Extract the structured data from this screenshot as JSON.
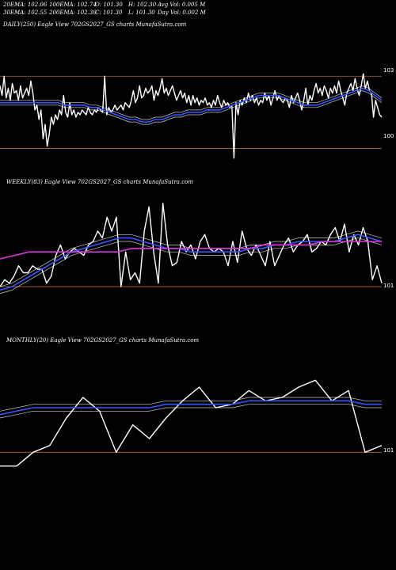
{
  "header": {
    "ema20": "20EMA: 102.06",
    "ema100": "100EMA: 102.74",
    "open": "O: 101.30",
    "high": "H: 102.30",
    "avg_vol": "Avg Vol: 0.005 M",
    "ema30": "30EMA: 102.55",
    "ema200": "200EMA: 102.39",
    "close": "C: 101.30",
    "low": "L: 101.30",
    "day_vol": "Day Vol: 0.002 M"
  },
  "panels": {
    "daily": {
      "title": "DAILY(250) Eagle  View  702GS2027_GS charts MunafaSutra.com"
    },
    "weekly": {
      "title": "WEEKLY(83) Eagle  View  702GS2027_GS charts MunafaSutra.com"
    },
    "monthly": {
      "title": "MONTHLY(20) Eagle  View  702GS2027_GS charts MunafaSutra.com"
    }
  },
  "colors": {
    "background": "#000000",
    "price": "#ffffff",
    "ema_short": "#3355ff",
    "ema_long": "#dd33dd",
    "ema_mid": "#cccccc",
    "level_line": "#b86a2a"
  },
  "chart_data": [
    {
      "type": "line",
      "panel": "daily",
      "levels": [
        {
          "value": 103,
          "label": "103"
        },
        {
          "value": 100,
          "label": "100"
        }
      ],
      "series": [
        {
          "role": "price",
          "values": [
            102.6,
            102.2,
            103.0,
            102.1,
            102.5,
            102.0,
            102.7,
            102.3,
            102.4,
            102.0,
            102.6,
            102.1,
            102.3,
            102.5,
            102.2,
            102.8,
            102.3,
            101.6,
            101.8,
            101.2,
            101.6,
            100.4,
            101.0,
            100.1,
            100.6,
            101.3,
            101.0,
            101.4,
            101.2,
            101.6,
            101.4,
            102.2,
            101.5,
            101.3,
            101.9,
            101.4,
            101.6,
            101.3,
            101.5,
            101.4,
            101.6,
            101.5,
            101.4,
            101.7,
            101.5,
            101.4,
            101.6,
            101.5,
            101.7,
            101.6,
            101.5,
            103.0,
            101.4,
            101.7,
            101.5,
            101.6,
            101.8,
            101.6,
            101.7,
            101.8,
            101.6,
            101.9,
            101.8,
            101.7,
            102.0,
            102.4,
            101.9,
            102.1,
            102.6,
            102.1,
            102.2,
            102.5,
            102.3,
            102.4,
            102.6,
            102.0,
            102.4,
            102.2,
            102.5,
            102.9,
            102.3,
            102.5,
            102.2,
            102.4,
            102.6,
            102.3,
            102.0,
            102.2,
            102.4,
            102.1,
            102.3,
            101.9,
            102.2,
            101.8,
            102.2,
            101.9,
            102.1,
            101.8,
            102.0,
            101.9,
            102.1,
            101.8,
            101.9,
            101.7,
            102.0,
            101.8,
            102.2,
            101.9,
            101.7,
            102.0,
            101.8,
            101.9,
            101.7,
            101.8,
            99.6,
            101.9,
            101.4,
            102.0,
            101.8,
            102.1,
            101.9,
            102.3,
            102.0,
            102.2,
            101.9,
            102.1,
            101.8,
            102.0,
            101.9,
            102.3,
            102.0,
            102.2,
            101.8,
            102.1,
            102.4,
            102.0,
            102.2,
            102.0,
            101.9,
            102.1,
            102.0,
            101.7,
            102.2,
            101.9,
            102.1,
            102.3,
            102.0,
            101.6,
            102.0,
            102.5,
            101.8,
            102.2,
            102.0,
            102.4,
            102.7,
            102.3,
            102.5,
            102.2,
            102.6,
            102.4,
            102.1,
            102.5,
            102.3,
            102.6,
            102.3,
            102.8,
            102.4,
            102.1,
            101.8,
            102.3,
            102.5,
            102.7,
            102.4,
            102.9,
            102.5,
            102.2,
            102.6,
            103.1,
            102.5,
            102.8,
            102.4,
            102.3,
            101.3,
            102.0,
            101.7,
            101.4,
            101.3
          ]
        },
        {
          "role": "ema_short",
          "values": [
            101.9,
            101.9,
            101.9,
            101.9,
            101.9,
            101.9,
            101.9,
            101.9,
            101.9,
            101.9,
            101.8,
            101.8,
            101.8,
            101.8,
            101.7,
            101.7,
            101.6,
            101.5,
            101.4,
            101.3,
            101.2,
            101.2,
            101.1,
            101.1,
            101.2,
            101.2,
            101.3,
            101.4,
            101.4,
            101.5,
            101.5,
            101.5,
            101.6,
            101.6,
            101.6,
            101.7,
            101.8,
            101.9,
            102.0,
            102.1,
            102.2,
            102.2,
            102.2,
            102.2,
            102.1,
            102.0,
            101.9,
            101.8,
            101.8,
            101.8,
            101.9,
            102.0,
            102.1,
            102.2,
            102.3,
            102.4,
            102.5,
            102.4,
            102.2,
            102.0
          ]
        }
      ]
    },
    {
      "type": "line",
      "panel": "weekly",
      "levels": [
        {
          "value": 101,
          "label": "101"
        }
      ],
      "series": [
        {
          "role": "price",
          "values": [
            101.0,
            101.2,
            101.1,
            101.3,
            101.6,
            101.4,
            101.4,
            101.6,
            101.5,
            101.5,
            101.1,
            101.3,
            101.9,
            102.2,
            101.8,
            102.0,
            102.1,
            102.0,
            101.9,
            102.2,
            102.3,
            102.6,
            102.4,
            103.0,
            102.6,
            103.0,
            101.0,
            102.0,
            101.2,
            101.4,
            101.1,
            102.6,
            103.3,
            102.0,
            101.1,
            103.4,
            102.2,
            101.6,
            101.7,
            102.3,
            102.0,
            102.2,
            101.8,
            102.3,
            102.5,
            102.1,
            102.0,
            102.1,
            102.0,
            101.6,
            102.3,
            101.7,
            102.6,
            102.1,
            101.9,
            102.2,
            101.9,
            101.6,
            102.3,
            101.6,
            101.9,
            102.2,
            102.4,
            102.0,
            102.2,
            102.3,
            102.5,
            102.0,
            102.1,
            102.3,
            102.2,
            102.5,
            102.7,
            102.3,
            102.8,
            102.0,
            102.5,
            102.2,
            102.7,
            102.3,
            101.2,
            101.6,
            101.1
          ]
        },
        {
          "role": "ema_short",
          "values": [
            100.9,
            101.0,
            101.2,
            101.4,
            101.6,
            101.8,
            102.0,
            102.1,
            102.2,
            102.3,
            102.4,
            102.4,
            102.3,
            102.2,
            102.1,
            102.1,
            102.0,
            102.0,
            102.0,
            102.0,
            102.0,
            102.1,
            102.1,
            102.2,
            102.2,
            102.3,
            102.3,
            102.3,
            102.3,
            102.4,
            102.5,
            102.4,
            102.3
          ]
        },
        {
          "role": "ema_long",
          "values": [
            101.8,
            101.9,
            102.0,
            102.0,
            102.0,
            102.0,
            102.0,
            102.0,
            102.0,
            102.1,
            102.1,
            102.1,
            102.1,
            102.1,
            102.1,
            102.1,
            102.1,
            102.1,
            102.2,
            102.2,
            102.2,
            102.2,
            102.3,
            102.3,
            102.3,
            102.3,
            102.3
          ]
        }
      ]
    },
    {
      "type": "line",
      "panel": "monthly",
      "levels": [
        {
          "value": 101,
          "label": "101"
        }
      ],
      "series": [
        {
          "role": "price",
          "values": [
            100.6,
            100.6,
            101.0,
            101.2,
            102.0,
            102.6,
            102.2,
            101.0,
            101.8,
            101.4,
            102.0,
            102.5,
            102.9,
            102.3,
            102.4,
            102.8,
            102.5,
            102.6,
            102.9,
            103.1,
            102.5,
            102.8,
            101.0,
            101.2
          ]
        },
        {
          "role": "ema_short",
          "values": [
            102.1,
            102.2,
            102.3,
            102.3,
            102.3,
            102.3,
            102.3,
            102.3,
            102.3,
            102.3,
            102.4,
            102.4,
            102.4,
            102.4,
            102.4,
            102.5,
            102.5,
            102.5,
            102.5,
            102.5,
            102.5,
            102.5,
            102.4,
            102.4
          ]
        }
      ]
    }
  ]
}
